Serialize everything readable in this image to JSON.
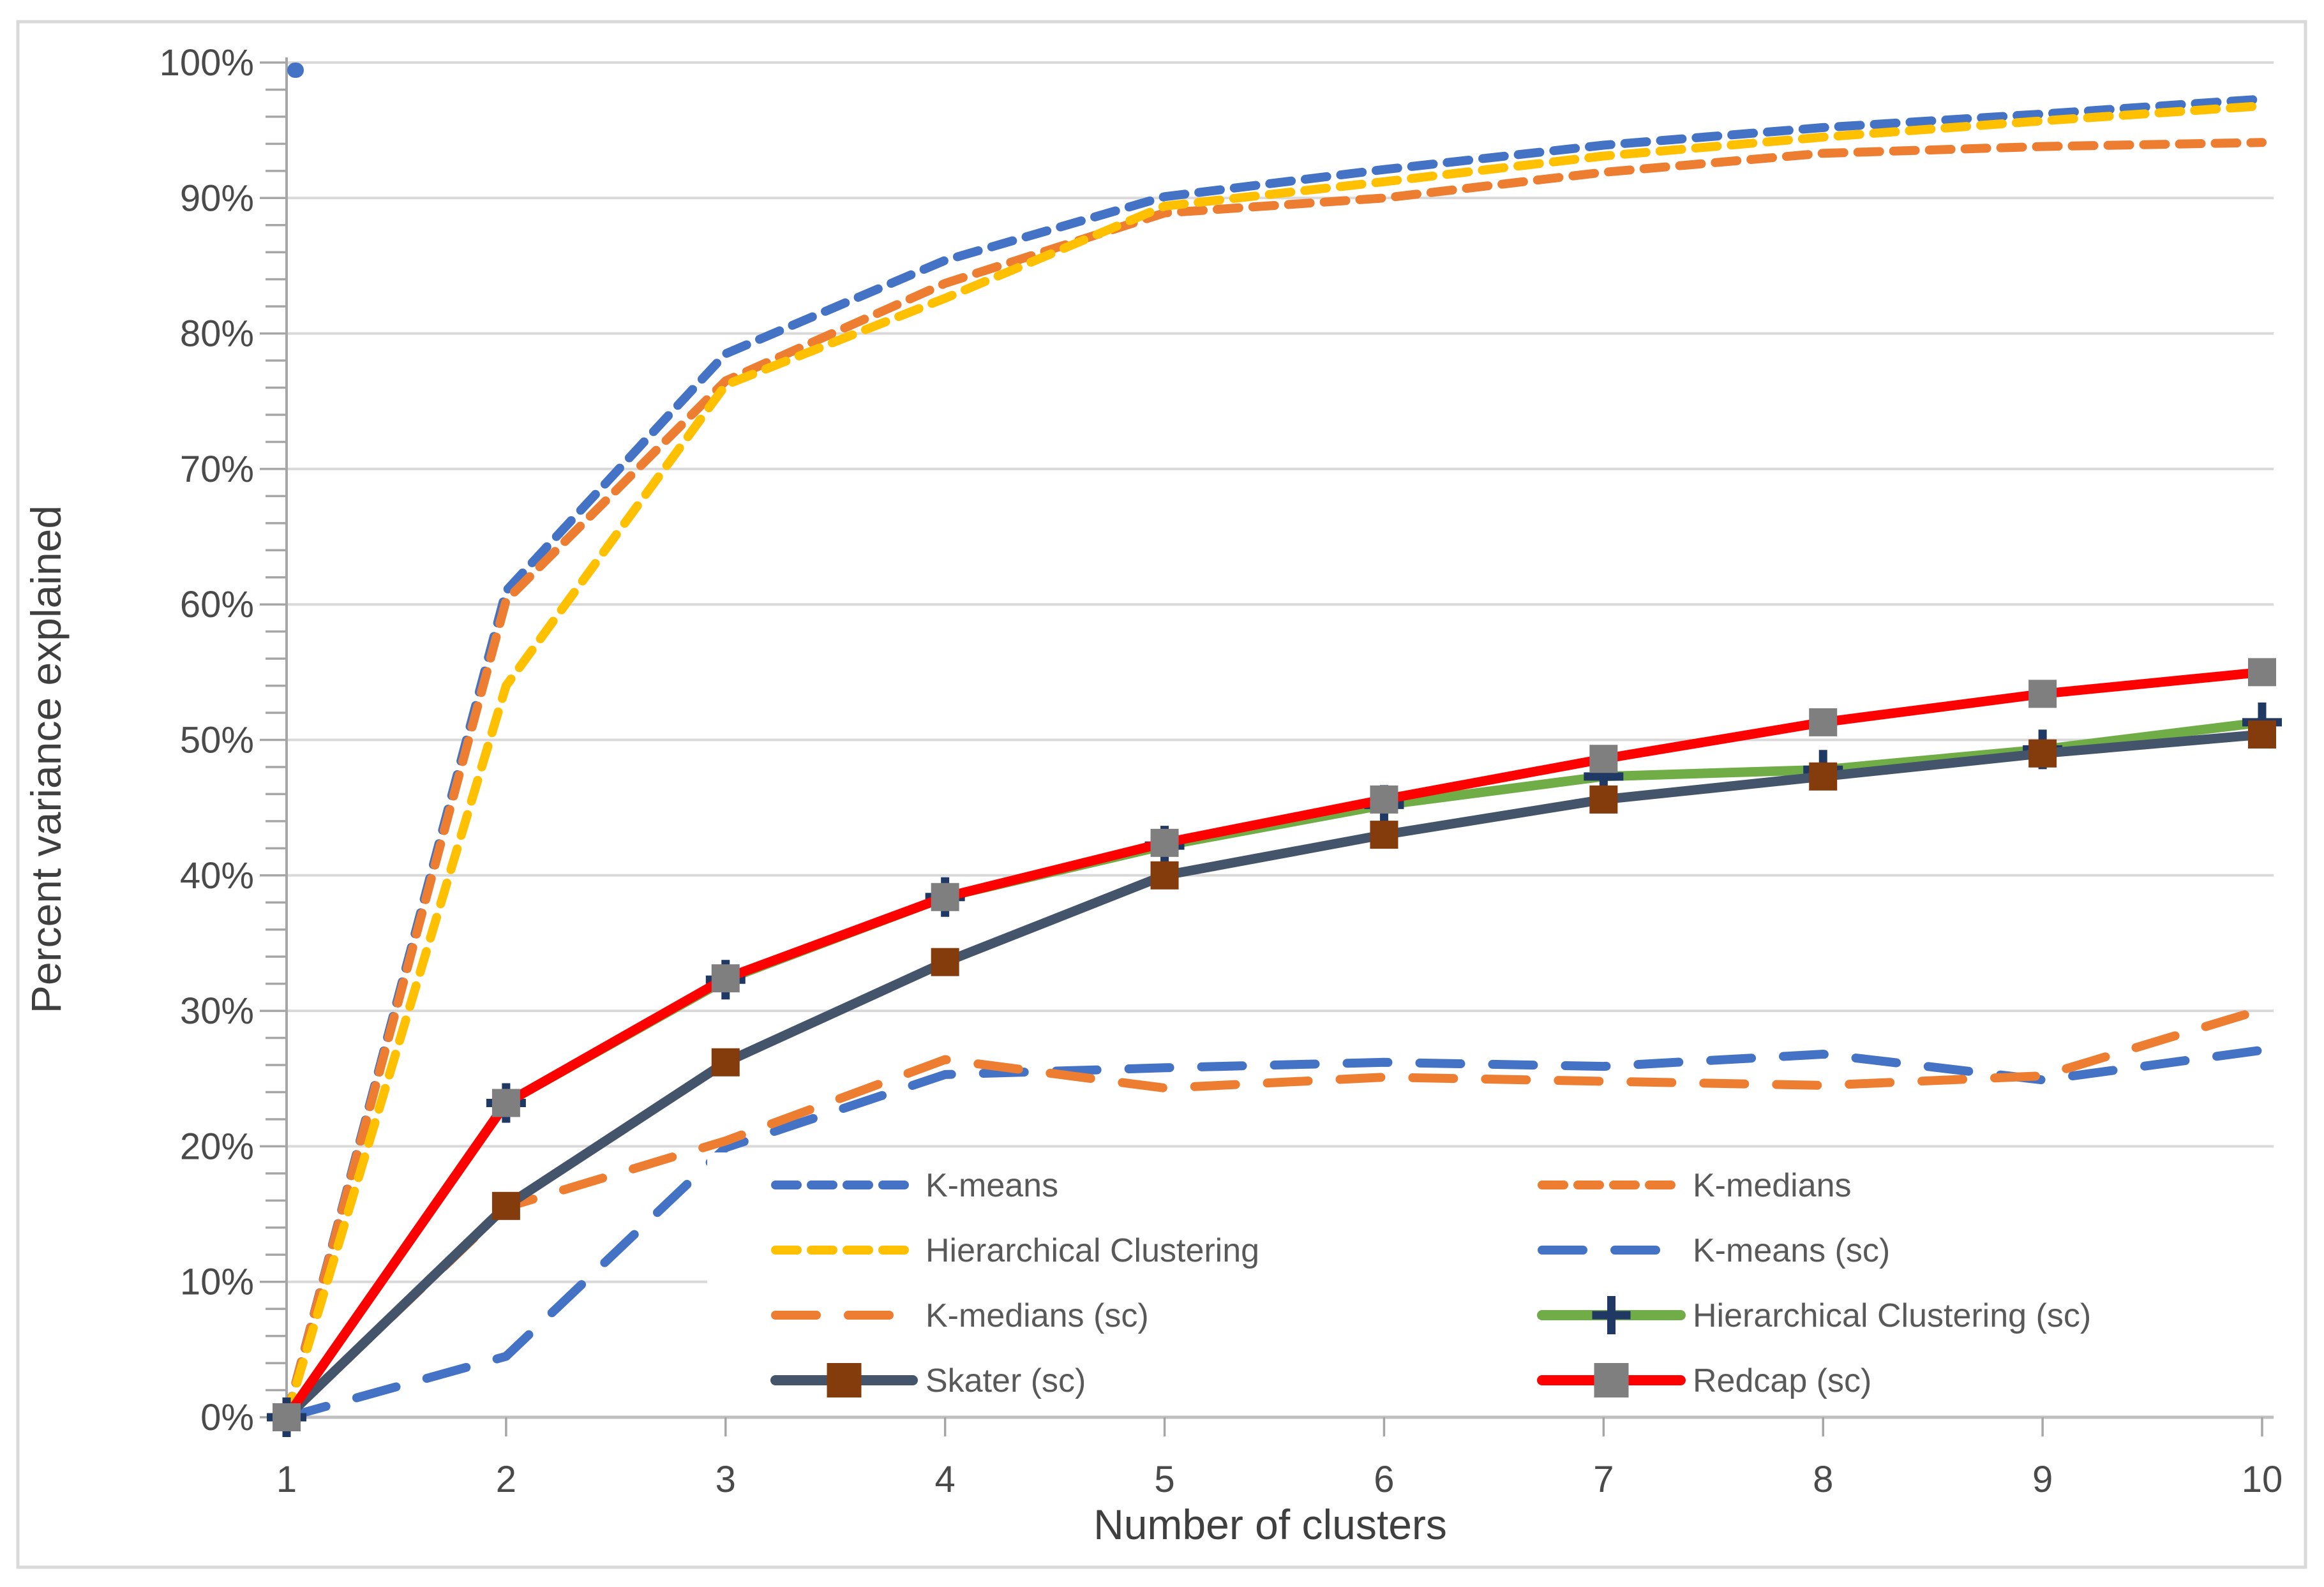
{
  "chart_data": {
    "type": "line",
    "title": "",
    "xlabel": "Number of clusters",
    "ylabel": "Percent variance explained",
    "categories": [
      1,
      2,
      3,
      4,
      5,
      6,
      7,
      8,
      9,
      10
    ],
    "x_tick_labels": [
      "1",
      "2",
      "3",
      "4",
      "5",
      "6",
      "7",
      "8",
      "9",
      "10"
    ],
    "y_tick_labels": [
      "0%",
      "10%",
      "20%",
      "30%",
      "40%",
      "50%",
      "60%",
      "70%",
      "80%",
      "90%",
      "100%"
    ],
    "y_axis": {
      "min": 0,
      "max": 100,
      "major_unit": 10,
      "minor_unit": 2,
      "format": "percent"
    },
    "grid": "horizontal-major",
    "series": [
      {
        "key": "kmeans",
        "name": "K-means",
        "color": "#4472C4",
        "line": "dash-fine",
        "marker": "none",
        "values": [
          0,
          61.0,
          78.5,
          85.4,
          90.1,
          92.1,
          93.9,
          95.2,
          96.2,
          97.3
        ]
      },
      {
        "key": "kmedians",
        "name": "K-medians",
        "color": "#ED7D31",
        "line": "dash-fine",
        "marker": "none",
        "values": [
          0,
          60.3,
          76.5,
          83.7,
          88.9,
          90.0,
          91.9,
          93.3,
          93.8,
          94.1
        ]
      },
      {
        "key": "hierarchical",
        "name": "Hierarchical Clustering",
        "color": "#FFC000",
        "line": "dash-fine",
        "marker": "none",
        "values": [
          0,
          54.0,
          76.2,
          82.6,
          89.4,
          91.2,
          93.1,
          94.5,
          95.7,
          96.8
        ]
      },
      {
        "key": "kmeans_sc",
        "name": "K-means (sc)",
        "color": "#4472C4",
        "line": "dash-long",
        "marker": "none",
        "values": [
          0,
          4.5,
          19.9,
          25.3,
          25.8,
          26.2,
          25.9,
          26.8,
          24.9,
          27.1
        ]
      },
      {
        "key": "kmedians_sc",
        "name": "K-medians (sc)",
        "color": "#ED7D31",
        "line": "dash-long",
        "marker": "none",
        "values": [
          0,
          15.5,
          20.4,
          26.4,
          24.3,
          25.1,
          24.8,
          24.5,
          25.2,
          30.1
        ]
      },
      {
        "key": "hc_sc",
        "name": "Hierarchical Clustering (sc)",
        "color": "#70AD47",
        "line": "solid",
        "marker": "plus",
        "marker_color": "#1F3864",
        "values": [
          0,
          23.2,
          32.3,
          38.4,
          42.2,
          45.2,
          47.3,
          47.8,
          49.3,
          51.3
        ]
      },
      {
        "key": "skater_sc",
        "name": "Skater (sc)",
        "color": "#44546A",
        "line": "solid",
        "marker": "square",
        "marker_color": "#843C0C",
        "values": [
          0,
          15.6,
          26.2,
          33.6,
          40.0,
          43.0,
          45.6,
          47.3,
          49.0,
          50.4
        ]
      },
      {
        "key": "redcap_sc",
        "name": "Redcap (sc)",
        "color": "#FF0000",
        "line": "solid",
        "marker": "square",
        "marker_color": "#7F7F7F",
        "values": [
          0,
          23.2,
          32.4,
          38.4,
          42.4,
          45.6,
          48.6,
          51.3,
          53.4,
          55.0
        ]
      }
    ],
    "stray_point": {
      "x": 1,
      "value": 100,
      "color": "#4472C4"
    },
    "legend": {
      "position": "inside-bottom",
      "columns": 2,
      "rows": [
        [
          {
            "label": "K-means",
            "series_key": "kmeans"
          },
          {
            "label": "K-medians",
            "series_key": "kmedians"
          }
        ],
        [
          {
            "label": "Hierarchical Clustering",
            "series_key": "hierarchical"
          },
          {
            "label": "K-means (sc)",
            "series_key": "kmeans_sc"
          }
        ],
        [
          {
            "label": "K-medians (sc)",
            "series_key": "kmedians_sc"
          },
          {
            "label": "Hierarchical Clustering (sc)",
            "series_key": "hc_sc"
          }
        ],
        [
          {
            "label": "Skater (sc)",
            "series_key": "skater_sc"
          },
          {
            "label": "Redcap (sc)",
            "series_key": "redcap_sc"
          }
        ]
      ]
    },
    "style_colors": {
      "gridline": "#D9D9D9",
      "axis": "#A6A6A6",
      "baseline": "#BFBFBF",
      "tick_text": "#4a4a4a",
      "legend_text": "#595959",
      "frame": "#D9D9D9"
    }
  }
}
